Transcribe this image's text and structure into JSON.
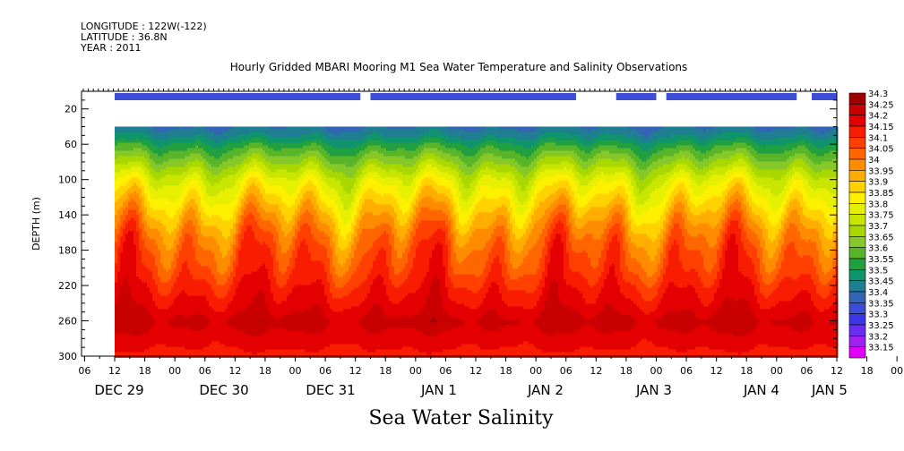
{
  "header": {
    "longitude": "LONGITUDE : 122W(-122)",
    "latitude": "LATITUDE : 36.8N",
    "year": "YEAR : 2011"
  },
  "title": "Hourly Gridded MBARI Mooring M1 Sea Water Temperature and Salinity Observations",
  "bottom_title": "Sea Water Salinity",
  "chart_data": {
    "type": "heatmap",
    "title": "Hourly Gridded MBARI Mooring M1 Sea Water Temperature and Salinity Observations",
    "subtitle": "Sea Water Salinity",
    "xlabel": "",
    "ylabel": "DEPTH (m)",
    "ylim": [
      300,
      0
    ],
    "yticks": [
      20,
      60,
      100,
      140,
      180,
      220,
      260,
      300
    ],
    "xticks_hours": [
      "06",
      "12",
      "18",
      "00",
      "06",
      "12",
      "18",
      "00",
      "06",
      "12",
      "18",
      "00",
      "06",
      "12",
      "18",
      "00",
      "06",
      "12",
      "18",
      "00",
      "06",
      "12",
      "18",
      "00",
      "06",
      "12",
      "18",
      "00",
      "06",
      "12",
      "18",
      "00"
    ],
    "date_labels": [
      "DEC 29",
      "DEC 30",
      "DEC 31",
      "JAN  1",
      "JAN  2",
      "JAN  3",
      "JAN  4",
      "JAN  5"
    ],
    "colorbar_levels": [
      "34.3",
      "34.25",
      "34.2",
      "34.15",
      "34.1",
      "34.05",
      "34",
      "33.95",
      "33.9",
      "33.85",
      "33.8",
      "33.75",
      "33.7",
      "33.65",
      "33.6",
      "33.55",
      "33.5",
      "33.45",
      "33.4",
      "33.35",
      "33.3",
      "33.25",
      "33.2",
      "33.15"
    ],
    "colorbar_colors": [
      "#a00000",
      "#c80000",
      "#e40000",
      "#f81c00",
      "#ff4000",
      "#ff6600",
      "#ff8c00",
      "#ffae00",
      "#ffd200",
      "#fff000",
      "#e6f000",
      "#c8e600",
      "#a8d800",
      "#86c828",
      "#58b428",
      "#20a040",
      "#10946e",
      "#207e92",
      "#3465b4",
      "#3c4ed6",
      "#3c36e6",
      "#6a2cf0",
      "#a020f0",
      "#e000f8"
    ],
    "surface_bar_segments_hours": [
      [
        0,
        49
      ],
      [
        51,
        92
      ],
      [
        100,
        108
      ],
      [
        110,
        136
      ],
      [
        139,
        144
      ]
    ],
    "data_start_depth": 40,
    "time_range_hours": [
      0,
      144
    ],
    "profile": [
      {
        "depth": 40,
        "salinity": 33.45
      },
      {
        "depth": 50,
        "salinity": 33.5
      },
      {
        "depth": 60,
        "salinity": 33.58
      },
      {
        "depth": 80,
        "salinity": 33.7
      },
      {
        "depth": 100,
        "salinity": 33.82
      },
      {
        "depth": 120,
        "salinity": 33.9
      },
      {
        "depth": 140,
        "salinity": 33.98
      },
      {
        "depth": 160,
        "salinity": 34.05
      },
      {
        "depth": 180,
        "salinity": 34.1
      },
      {
        "depth": 200,
        "salinity": 34.13
      },
      {
        "depth": 220,
        "salinity": 34.18
      },
      {
        "depth": 240,
        "salinity": 34.22
      },
      {
        "depth": 260,
        "salinity": 34.27
      },
      {
        "depth": 280,
        "salinity": 34.22
      },
      {
        "depth": 300,
        "salinity": 34.18
      }
    ]
  }
}
